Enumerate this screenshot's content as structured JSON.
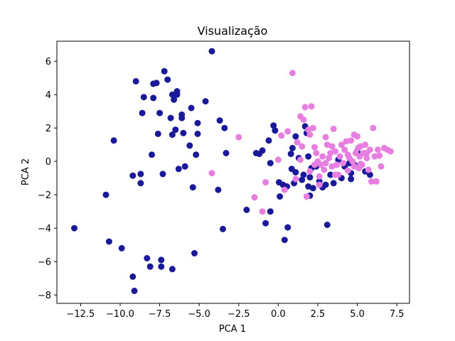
{
  "chart_data": {
    "type": "scatter",
    "title": "Visualização",
    "xlabel": "PCA 1",
    "ylabel": "PCA 2",
    "xlim": [
      -14.0,
      8.3
    ],
    "ylim": [
      -8.5,
      7.2
    ],
    "xticks": [
      -12.5,
      -10.0,
      -7.5,
      -5.0,
      -2.5,
      0.0,
      2.5,
      5.0,
      7.5
    ],
    "xtick_labels": [
      "−12.5",
      "−10.0",
      "−7.5",
      "−5.0",
      "−2.5",
      "0.0",
      "2.5",
      "5.0",
      "7.5"
    ],
    "yticks": [
      -8,
      -6,
      -4,
      -2,
      0,
      2,
      4,
      6
    ],
    "ytick_labels": [
      "−8",
      "−6",
      "−4",
      "−2",
      "0",
      "2",
      "4",
      "6"
    ],
    "grid": false,
    "series": [
      {
        "color": "#1a1a99",
        "points": [
          [
            -12.9,
            -4.0
          ],
          [
            -10.9,
            -2.0
          ],
          [
            -10.7,
            -4.8
          ],
          [
            -10.4,
            1.25
          ],
          [
            -9.9,
            -5.2
          ],
          [
            -9.2,
            -6.9
          ],
          [
            -9.1,
            -7.75
          ],
          [
            -9.2,
            -0.85
          ],
          [
            -9.0,
            4.8
          ],
          [
            -8.7,
            -1.3
          ],
          [
            -8.7,
            -0.75
          ],
          [
            -8.6,
            2.9
          ],
          [
            -8.5,
            3.85
          ],
          [
            -8.3,
            -5.8
          ],
          [
            -8.1,
            -6.3
          ],
          [
            -8.0,
            0.4
          ],
          [
            -7.9,
            4.65
          ],
          [
            -7.9,
            3.8
          ],
          [
            -7.7,
            4.7
          ],
          [
            -7.6,
            1.65
          ],
          [
            -7.5,
            2.9
          ],
          [
            -7.4,
            -5.9
          ],
          [
            -7.4,
            -6.3
          ],
          [
            -7.3,
            -0.75
          ],
          [
            -7.2,
            5.4
          ],
          [
            -7.0,
            4.9
          ],
          [
            -6.8,
            2.6
          ],
          [
            -6.7,
            4.0
          ],
          [
            -6.6,
            3.7
          ],
          [
            -6.7,
            -6.45
          ],
          [
            -6.7,
            1.6
          ],
          [
            -6.5,
            1.9
          ],
          [
            -6.4,
            4.0
          ],
          [
            -6.4,
            4.2
          ],
          [
            -6.3,
            -0.45
          ],
          [
            -6.1,
            2.8
          ],
          [
            -6.1,
            2.6
          ],
          [
            -6.0,
            1.7
          ],
          [
            -5.9,
            -0.3
          ],
          [
            -5.6,
            0.95
          ],
          [
            -5.5,
            3.2
          ],
          [
            -5.4,
            -1.55
          ],
          [
            -5.3,
            -5.5
          ],
          [
            -5.1,
            1.65
          ],
          [
            -5.2,
            0.4
          ],
          [
            -5.1,
            2.3
          ],
          [
            -4.6,
            3.6
          ],
          [
            -4.2,
            6.6
          ],
          [
            -3.8,
            -1.7
          ],
          [
            -3.7,
            2.45
          ],
          [
            -3.5,
            -4.05
          ],
          [
            -3.4,
            2.0
          ],
          [
            -3.3,
            0.5
          ],
          [
            -2.0,
            -2.9
          ],
          [
            -1.4,
            0.5
          ],
          [
            -1.2,
            0.45
          ],
          [
            -1.0,
            0.65
          ],
          [
            -0.8,
            -3.7
          ],
          [
            -0.6,
            1.25
          ],
          [
            -0.5,
            -3.0
          ],
          [
            -0.5,
            -0.1
          ],
          [
            -0.3,
            2.15
          ],
          [
            -0.2,
            1.85
          ],
          [
            0.05,
            -1.25
          ],
          [
            0.1,
            -2.1
          ],
          [
            0.3,
            -1.4
          ],
          [
            0.4,
            -4.7
          ],
          [
            0.55,
            -1.5
          ],
          [
            0.6,
            -3.95
          ],
          [
            0.8,
            0.45
          ],
          [
            0.9,
            0.8
          ],
          [
            0.85,
            -0.45
          ],
          [
            1.0,
            -1.3
          ],
          [
            1.1,
            1.5
          ],
          [
            1.1,
            -0.65
          ],
          [
            1.3,
            0.2
          ],
          [
            1.5,
            -1.1
          ],
          [
            1.6,
            -0.8
          ],
          [
            1.7,
            2.1
          ],
          [
            1.8,
            1.7
          ],
          [
            1.9,
            0.3
          ],
          [
            1.9,
            -1.5
          ],
          [
            2.0,
            -0.95
          ],
          [
            2.0,
            -2.05
          ],
          [
            2.1,
            -0.4
          ],
          [
            2.2,
            -1.6
          ],
          [
            2.4,
            -0.3
          ],
          [
            2.6,
            -1.2
          ],
          [
            2.8,
            -1.55
          ],
          [
            3.0,
            -1.4
          ],
          [
            3.1,
            -3.8
          ],
          [
            3.3,
            -0.8
          ],
          [
            3.5,
            -1.3
          ],
          [
            3.8,
            0.1
          ],
          [
            4.0,
            -1.0
          ],
          [
            4.2,
            -0.3
          ],
          [
            4.5,
            -0.1
          ],
          [
            4.6,
            -0.7
          ],
          [
            4.8,
            -0.2
          ],
          [
            5.0,
            0.6
          ],
          [
            5.5,
            -0.6
          ],
          [
            5.8,
            -0.8
          ],
          [
            4.6,
            -1.05
          ]
        ]
      },
      {
        "color": "#e77fe0",
        "points": [
          [
            -4.2,
            -0.7
          ],
          [
            -2.5,
            1.45
          ],
          [
            -1.5,
            -2.15
          ],
          [
            -1.0,
            -3.0
          ],
          [
            -0.8,
            -1.25
          ],
          [
            0.0,
            0.1
          ],
          [
            0.2,
            1.55
          ],
          [
            0.4,
            -1.7
          ],
          [
            0.6,
            1.8
          ],
          [
            0.9,
            5.3
          ],
          [
            1.1,
            -1.05
          ],
          [
            1.2,
            1.15
          ],
          [
            1.4,
            2.7
          ],
          [
            1.5,
            0.9
          ],
          [
            1.6,
            2.5
          ],
          [
            1.7,
            3.25
          ],
          [
            1.9,
            1.9
          ],
          [
            2.0,
            1.6
          ],
          [
            2.1,
            3.3
          ],
          [
            2.2,
            2.0
          ],
          [
            2.3,
            0.85
          ],
          [
            2.4,
            0.5
          ],
          [
            2.5,
            0.0
          ],
          [
            2.6,
            -0.9
          ],
          [
            2.7,
            -0.2
          ],
          [
            2.8,
            0.3
          ],
          [
            2.9,
            -0.5
          ],
          [
            3.0,
            1.45
          ],
          [
            3.1,
            1.0
          ],
          [
            3.2,
            0.2
          ],
          [
            3.3,
            0.5
          ],
          [
            3.4,
            -0.3
          ],
          [
            3.5,
            1.95
          ],
          [
            3.6,
            0.6
          ],
          [
            3.7,
            -0.2
          ],
          [
            3.8,
            -0.8
          ],
          [
            3.9,
            0.3
          ],
          [
            4.0,
            1.0
          ],
          [
            4.1,
            -0.1
          ],
          [
            4.2,
            0.7
          ],
          [
            4.3,
            1.2
          ],
          [
            4.4,
            -0.55
          ],
          [
            4.5,
            0.2
          ],
          [
            4.6,
            1.25
          ],
          [
            4.7,
            0.0
          ],
          [
            4.8,
            -0.3
          ],
          [
            4.9,
            0.5
          ],
          [
            5.0,
            1.5
          ],
          [
            5.05,
            0.8
          ],
          [
            5.1,
            -0.4
          ],
          [
            5.15,
            0.3
          ],
          [
            5.2,
            0.9
          ],
          [
            5.3,
            -0.2
          ],
          [
            5.4,
            0.5
          ],
          [
            5.5,
            1.0
          ],
          [
            5.6,
            0.2
          ],
          [
            5.7,
            -0.5
          ],
          [
            5.8,
            0.7
          ],
          [
            5.9,
            -1.2
          ],
          [
            6.0,
            2.0
          ],
          [
            6.1,
            0.3
          ],
          [
            6.2,
            -1.2
          ],
          [
            6.3,
            0.7
          ],
          [
            6.4,
            0.35
          ],
          [
            6.5,
            -0.3
          ],
          [
            6.7,
            0.8
          ],
          [
            6.9,
            0.7
          ],
          [
            7.1,
            0.6
          ],
          [
            2.0,
            -0.6
          ],
          [
            2.3,
            -0.2
          ],
          [
            3.6,
            -0.8
          ],
          [
            4.4,
            0.4
          ],
          [
            5.2,
            -0.15
          ],
          [
            1.8,
            -2.1
          ],
          [
            2.6,
            -1.4
          ],
          [
            3.4,
            0.9
          ],
          [
            4.8,
            1.6
          ],
          [
            5.6,
            0.5
          ],
          [
            1.4,
            0.1
          ],
          [
            3.0,
            -0.1
          ]
        ]
      }
    ]
  }
}
